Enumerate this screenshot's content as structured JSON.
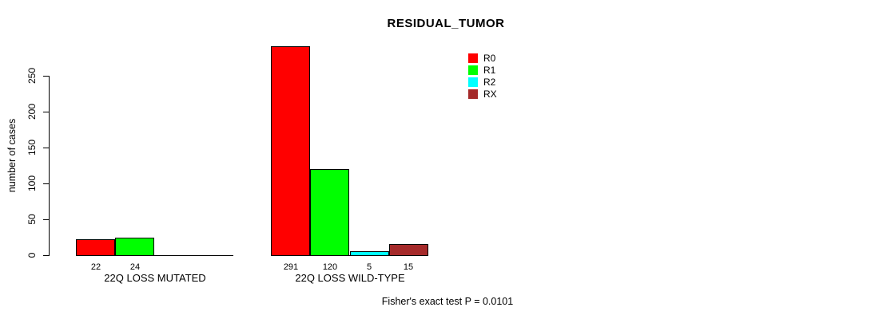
{
  "chart_data": {
    "type": "bar",
    "grouped": true,
    "title": "RESIDUAL_TUMOR",
    "ylabel": "number of cases",
    "xlabel": "",
    "annotation": "Fisher's exact test P = 0.0101",
    "yticks": [
      0,
      50,
      100,
      150,
      200,
      250
    ],
    "ylim": [
      0,
      291
    ],
    "grid": false,
    "legend_position": "top-right",
    "categories": [
      "22Q LOSS MUTATED",
      "22Q LOSS WILD-TYPE"
    ],
    "series": [
      {
        "name": "R0",
        "color": "#ff0000",
        "values": [
          22,
          291
        ]
      },
      {
        "name": "R1",
        "color": "#00ff00",
        "values": [
          24,
          120
        ]
      },
      {
        "name": "R2",
        "color": "#00ffff",
        "values": [
          0,
          5
        ]
      },
      {
        "name": "RX",
        "color": "#a52a2a",
        "values": [
          0,
          15
        ]
      }
    ],
    "show_zero_value_labels": false,
    "visible_bar_value_labels": {
      "22Q LOSS MUTATED": [
        "22",
        "24"
      ],
      "22Q LOSS WILD-TYPE": [
        "291",
        "120",
        "5",
        "15"
      ]
    }
  }
}
